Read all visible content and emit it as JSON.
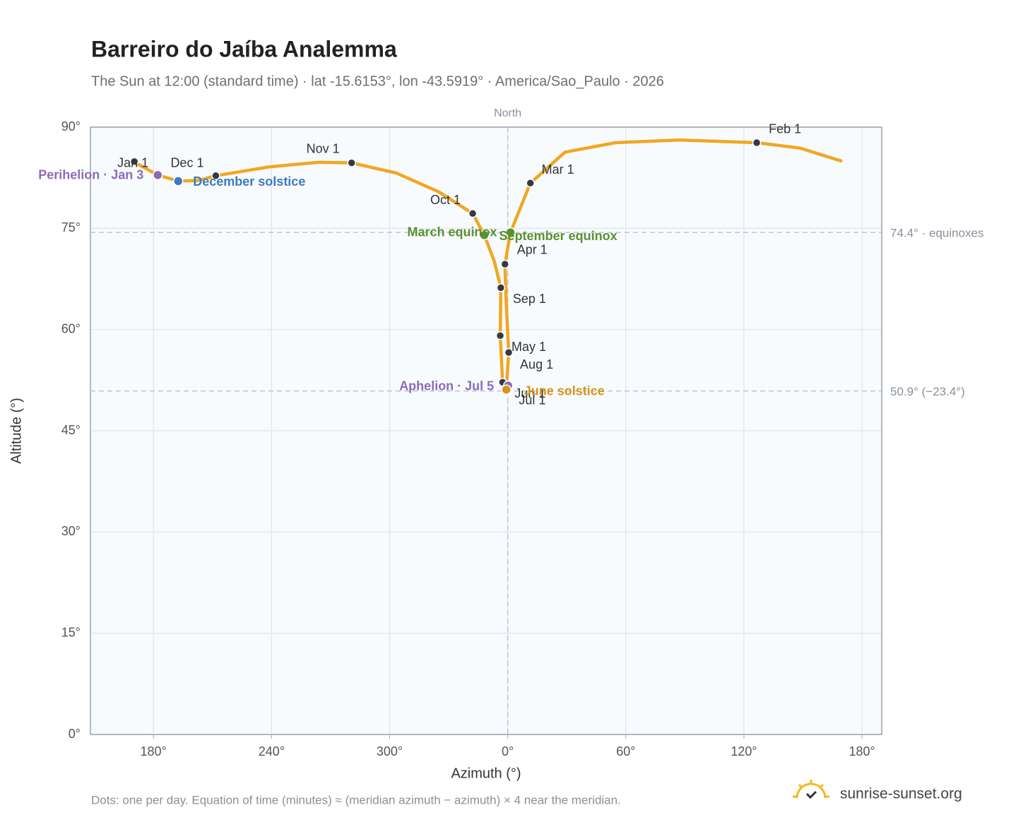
{
  "chart_data": {
    "type": "analemma",
    "title": "Barreiro do Jaíba Analemma",
    "subtitle": "The Sun at 12:00 (standard time) · lat -15.6153°, lon -43.5919° · America/Sao_Paulo · 2026",
    "x_label": "Azimuth (°)",
    "y_label": "Altitude (°)",
    "xlim": [
      148,
      550
    ],
    "ylim": [
      0,
      90
    ],
    "xticks": [
      {
        "value": 180,
        "label": "180°"
      },
      {
        "value": 240,
        "label": "240°"
      },
      {
        "value": 300,
        "label": "300°"
      },
      {
        "value": 360,
        "label": "0°"
      },
      {
        "value": 420,
        "label": "60°"
      },
      {
        "value": 480,
        "label": "120°"
      },
      {
        "value": 540,
        "label": "180°"
      }
    ],
    "yticks": [
      {
        "value": 0,
        "label": "0°"
      },
      {
        "value": 15,
        "label": "15°"
      },
      {
        "value": 30,
        "label": "30°"
      },
      {
        "value": 45,
        "label": "45°"
      },
      {
        "value": 60,
        "label": "60°"
      },
      {
        "value": 75,
        "label": "75°"
      },
      {
        "value": 90,
        "label": "90°"
      }
    ],
    "grid": true,
    "curve_color": "#f2a623",
    "curve": {
      "x": [
        169.6,
        182.2,
        192.6,
        202.7,
        211.7,
        238.6,
        263.8,
        280.7,
        303.4,
        325.0,
        342.2,
        348.1,
        353.2,
        356.5,
        356.2,
        357.4,
        359.3,
        360.5,
        359.1,
        358.6,
        361.4,
        371.5,
        389.1,
        414.9,
        447.3,
        486.5,
        508.4,
        529.3
      ],
      "y": [
        84.9,
        82.9,
        82.0,
        82.1,
        82.8,
        84.1,
        84.8,
        84.7,
        83.2,
        80.4,
        77.2,
        74.0,
        70.1,
        66.2,
        59.1,
        52.2,
        51.1,
        56.6,
        64.9,
        69.7,
        74.4,
        81.7,
        86.3,
        87.7,
        88.1,
        87.7,
        86.9,
        85.0
      ]
    },
    "meridian": {
      "x": 360,
      "label": "North"
    },
    "reference_lines": [
      {
        "y": 74.4,
        "label": "74.4° · equinoxes"
      },
      {
        "y": 50.9,
        "label": "50.9° (−23.4°)"
      }
    ],
    "months": [
      {
        "label": "Jan 1",
        "x": 170.3,
        "y": 84.9
      },
      {
        "label": "Dec 1",
        "x": 211.7,
        "y": 82.8
      },
      {
        "label": "Nov 1",
        "x": 280.7,
        "y": 84.7
      },
      {
        "label": "Oct 1",
        "x": 342.2,
        "y": 77.2
      },
      {
        "label": "Apr 1",
        "x": 358.6,
        "y": 69.7
      },
      {
        "label": "Sep 1",
        "x": 356.5,
        "y": 66.2
      },
      {
        "label": "Aug 1",
        "x": 356.2,
        "y": 59.1
      },
      {
        "label": "May 1",
        "x": 360.5,
        "y": 56.6
      },
      {
        "label": "Jun 1",
        "x": 357.4,
        "y": 52.2
      },
      {
        "label": "Jul 1",
        "x": 359.9,
        "y": 51.6
      },
      {
        "label": "Mar 1",
        "x": 371.5,
        "y": 81.7
      },
      {
        "label": "Feb 1",
        "x": 486.5,
        "y": 87.7
      }
    ],
    "events": [
      {
        "label": "Perihelion · Jan 3",
        "x": 182.2,
        "y": 82.9,
        "color": "#8e6bb8"
      },
      {
        "label": "December solstice",
        "x": 192.6,
        "y": 82.0,
        "color": "#3b7bbf"
      },
      {
        "label": "March equinox",
        "x": 348.1,
        "y": 74.0,
        "color": "#5a9130"
      },
      {
        "label": "September equinox",
        "x": 361.4,
        "y": 74.4,
        "color": "#5a9130"
      },
      {
        "label": "Aphelion · Jul 5",
        "x": 360.2,
        "y": 51.7,
        "color": "#8e6bb8"
      },
      {
        "label": "June solstice",
        "x": 359.3,
        "y": 51.1,
        "color": "#d4951a"
      }
    ],
    "footnote": "Dots: one per day. Equation of time (minutes) ≈ (meridian azimuth − azimuth) × 4 near the meridian.",
    "brand": "sunrise-sunset.org"
  }
}
